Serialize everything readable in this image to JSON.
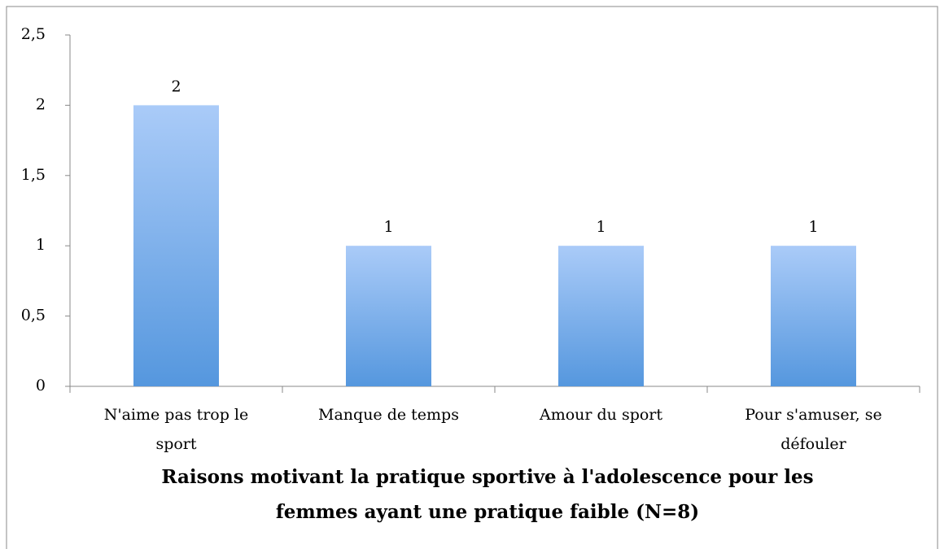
{
  "chart_data": {
    "type": "bar",
    "title": "Raisons motivant la pratique sportive à l'adolescence pour les femmes ayant une pratique faible (N=8)",
    "categories": [
      "N'aime pas trop le sport",
      "Manque de temps",
      "Amour du sport",
      "Pour s'amuser, se défouler"
    ],
    "values": [
      2,
      1,
      1,
      1
    ],
    "color": "#5b9be0",
    "ylim": [
      0,
      2.5
    ],
    "yticks": [
      0,
      {
        "value": 0.5,
        "label": "0,5"
      },
      1,
      {
        "value": 1.5,
        "label": "1,5"
      },
      2,
      {
        "value": 2.5,
        "label": "2,5"
      }
    ],
    "grid": false
  }
}
